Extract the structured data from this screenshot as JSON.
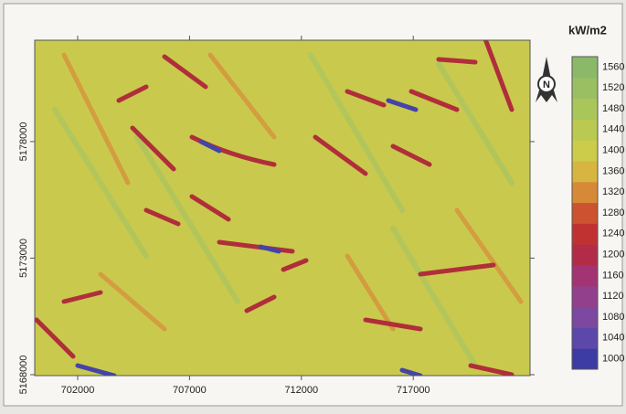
{
  "map": {
    "x_axis": {
      "lim": [
        700080,
        722220
      ],
      "ticks": [
        702000,
        707000,
        712000,
        717000
      ]
    },
    "y_axis": {
      "lim": [
        5167960,
        5182350
      ],
      "ticks": [
        5168000,
        5173000,
        5178000
      ]
    },
    "north_label": "N",
    "legend": {
      "title": "kW/m2",
      "values": [
        1000,
        1040,
        1080,
        1120,
        1160,
        1200,
        1240,
        1280,
        1320,
        1360,
        1400,
        1440,
        1480,
        1520,
        1560
      ],
      "colors": [
        "#3c3ca4",
        "#5c48a8",
        "#7c48a0",
        "#92408c",
        "#a23474",
        "#b22c48",
        "#c03232",
        "#cc5230",
        "#d68a38",
        "#d6b640",
        "#cccb4a",
        "#bac952",
        "#a9c65a",
        "#9abf62",
        "#8cb86a"
      ]
    }
  }
}
